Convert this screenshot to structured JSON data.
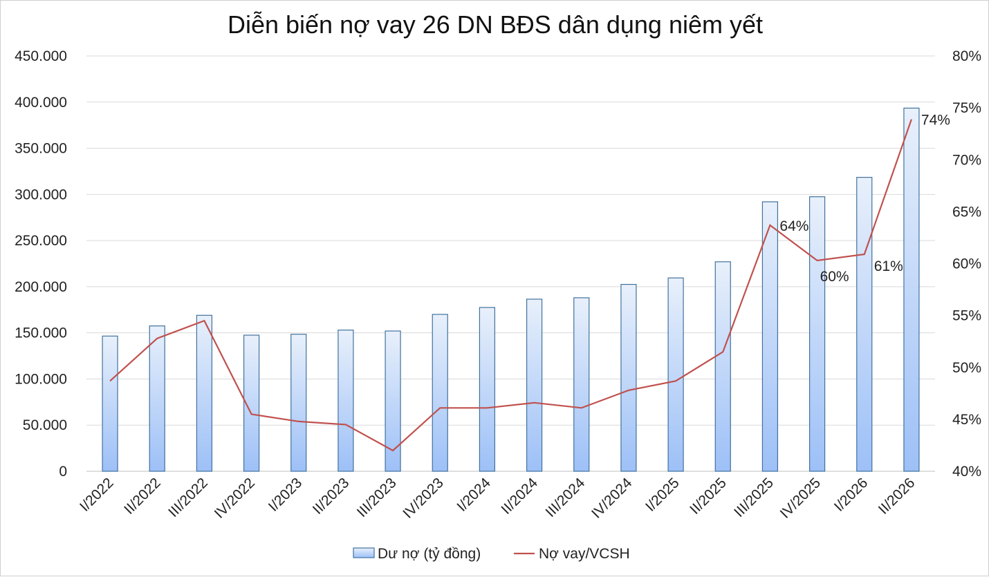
{
  "chart_data": {
    "type": "bar",
    "title": "Diễn biến nợ vay 26 DN BĐS dân dụng niêm yết",
    "categories": [
      "I/2022",
      "II/2022",
      "III/2022",
      "IV/2022",
      "I/2023",
      "II/2023",
      "III/2023",
      "IV/2023",
      "I/2024",
      "II/2024",
      "III/2024",
      "IV/2024",
      "I/2025",
      "II/2025",
      "III/2025",
      "IV/2025",
      "I/2026",
      "II/2026"
    ],
    "series": [
      {
        "name": "Dư nợ (tỷ đồng)",
        "type": "bar",
        "axis": "left",
        "values": [
          146500,
          157500,
          169000,
          147500,
          148500,
          153000,
          152000,
          170000,
          177500,
          186500,
          188000,
          202500,
          209500,
          227000,
          292000,
          297500,
          318500,
          393500
        ]
      },
      {
        "name": "Nợ vay/VCSH",
        "type": "line",
        "axis": "right",
        "values": [
          0.487,
          0.528,
          0.545,
          0.455,
          0.448,
          0.445,
          0.42,
          0.461,
          0.461,
          0.466,
          0.461,
          0.478,
          0.487,
          0.515,
          0.637,
          0.603,
          0.609,
          0.739
        ]
      }
    ],
    "point_labels": [
      {
        "index": 14,
        "text": "64%"
      },
      {
        "index": 15,
        "text": "60%"
      },
      {
        "index": 16,
        "text": "61%"
      },
      {
        "index": 17,
        "text": "74%"
      }
    ],
    "y_left": {
      "ylim": [
        0,
        450000
      ],
      "ticks": [
        0,
        50000,
        100000,
        150000,
        200000,
        250000,
        300000,
        350000,
        400000,
        450000
      ],
      "tick_labels": [
        "0",
        "50.000",
        "100.000",
        "150.000",
        "200.000",
        "250.000",
        "300.000",
        "350.000",
        "400.000",
        "450.000"
      ]
    },
    "y_right": {
      "ylim": [
        0.4,
        0.8
      ],
      "ticks": [
        0.4,
        0.45,
        0.5,
        0.55,
        0.6,
        0.65,
        0.7,
        0.75,
        0.8
      ],
      "tick_labels": [
        "40%",
        "45%",
        "50%",
        "55%",
        "60%",
        "65%",
        "70%",
        "75%",
        "80%"
      ]
    },
    "grid": true,
    "legend": {
      "position": "bottom",
      "entries": [
        "Dư nợ (tỷ đồng)",
        "Nợ vay/VCSH"
      ]
    },
    "colors": {
      "bar_top": "#e8f0fb",
      "bar_bottom": "#9dc0f7",
      "bar_border": "#41719c",
      "line": "#c0504d"
    }
  }
}
